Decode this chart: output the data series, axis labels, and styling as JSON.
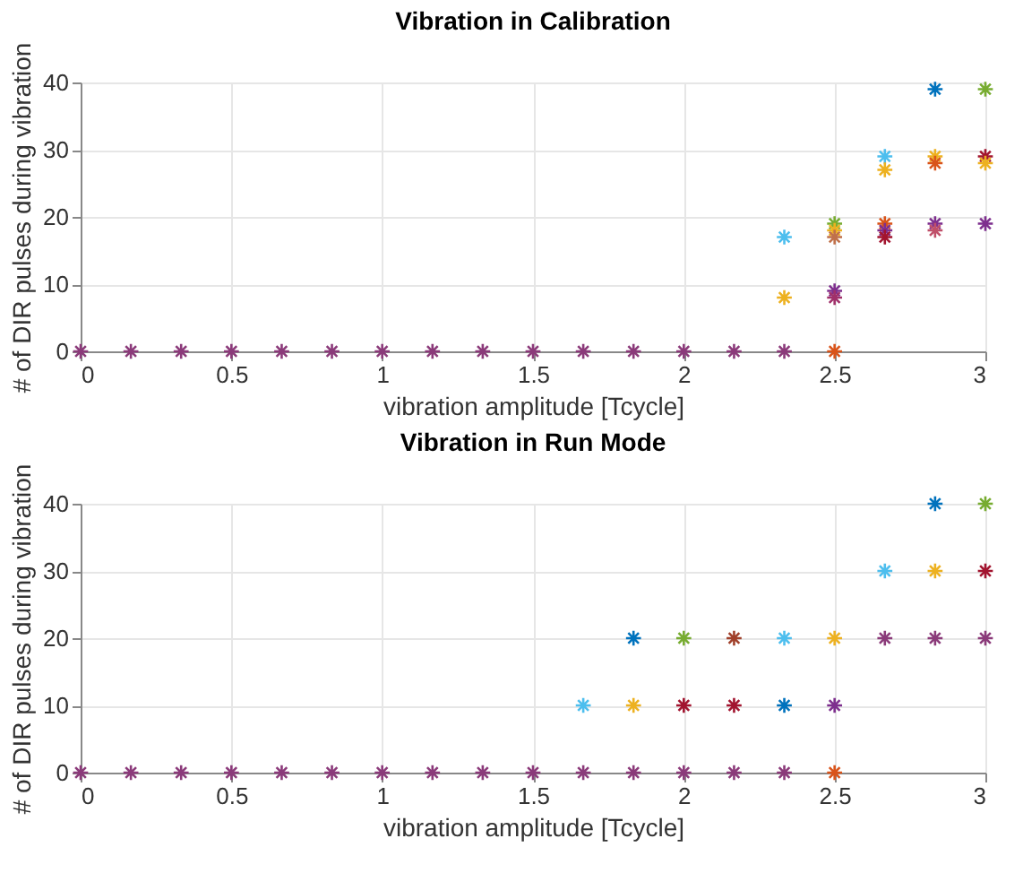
{
  "chart_data": [
    {
      "type": "scatter",
      "title": "Vibration in Calibration",
      "xlabel": "vibration amplitude [Tcycle]",
      "ylabel": "# of DIR pulses during vibration",
      "marker": "cross",
      "grid": true,
      "xlim": [
        0,
        3
      ],
      "ylim": [
        0,
        40
      ],
      "xticks": [
        0,
        0.5,
        1,
        1.5,
        2,
        2.5,
        3
      ],
      "yticks": [
        0,
        10,
        20,
        30,
        40
      ],
      "x": [
        0,
        0.1667,
        0.3333,
        0.5,
        0.6667,
        0.8333,
        1,
        1.1667,
        1.3333,
        1.5,
        1.6667,
        1.8333,
        2,
        2.1667,
        2.3333,
        2.5,
        2.3333,
        2.3333,
        2.5,
        2.5,
        2.5,
        2.5,
        2.5,
        2.6667,
        2.6667,
        2.6667,
        2.6667,
        2.6667,
        2.8333,
        2.8333,
        2.8333,
        2.8333,
        2.8333,
        3,
        3,
        3,
        3
      ],
      "values": [
        0,
        0,
        0,
        0,
        0,
        0,
        0,
        0,
        0,
        0,
        0,
        0,
        0,
        0,
        0,
        0,
        17,
        8,
        19,
        18,
        17,
        9,
        8,
        29,
        27,
        19,
        18,
        17,
        39,
        29,
        28,
        19,
        18,
        39,
        29,
        28,
        19
      ],
      "colors": [
        "#8b3a7a",
        "#8b3a7a",
        "#8b3a7a",
        "#8b3a7a",
        "#8b3a7a",
        "#8b3a7a",
        "#8b3a7a",
        "#8b3a7a",
        "#8b3a7a",
        "#8b3a7a",
        "#8b3a7a",
        "#8b3a7a",
        "#8b3a7a",
        "#8b3a7a",
        "#8b3a7a",
        "#d95319",
        "#4dbeee",
        "#edb120",
        "#77ac30",
        "#edb120",
        "#c0704a",
        "#7e2f8e",
        "#a0306a",
        "#4dbeee",
        "#edb120",
        "#d95319",
        "#7e2f8e",
        "#a2142f",
        "#0072bd",
        "#edb120",
        "#d95319",
        "#7e2f8e",
        "#c0506a",
        "#77ac30",
        "#a2142f",
        "#edb120",
        "#7e2f8e"
      ]
    },
    {
      "type": "scatter",
      "title": "Vibration in Run Mode",
      "xlabel": "vibration amplitude [Tcycle]",
      "ylabel": "# of DIR pulses during vibration",
      "marker": "cross",
      "grid": true,
      "xlim": [
        0,
        3
      ],
      "ylim": [
        0,
        40
      ],
      "xticks": [
        0,
        0.5,
        1,
        1.5,
        2,
        2.5,
        3
      ],
      "yticks": [
        0,
        10,
        20,
        30,
        40
      ],
      "x": [
        0,
        0.1667,
        0.3333,
        0.5,
        0.6667,
        0.8333,
        1,
        1.1667,
        1.3333,
        1.5,
        1.6667,
        1.8333,
        2,
        2.1667,
        2.3333,
        2.5,
        1.6667,
        1.8333,
        1.8333,
        2,
        2,
        2.1667,
        2.1667,
        2.3333,
        2.3333,
        2.5,
        2.5,
        2.6667,
        2.6667,
        2.8333,
        2.8333,
        2.8333,
        3,
        3,
        3
      ],
      "values": [
        0,
        0,
        0,
        0,
        0,
        0,
        0,
        0,
        0,
        0,
        0,
        0,
        0,
        0,
        0,
        0,
        10,
        10,
        20,
        10,
        20,
        10,
        20,
        10,
        20,
        10,
        20,
        20,
        30,
        20,
        30,
        40,
        20,
        30,
        40
      ],
      "colors": [
        "#8b3a7a",
        "#8b3a7a",
        "#8b3a7a",
        "#8b3a7a",
        "#8b3a7a",
        "#8b3a7a",
        "#8b3a7a",
        "#8b3a7a",
        "#8b3a7a",
        "#8b3a7a",
        "#8b3a7a",
        "#8b3a7a",
        "#8b3a7a",
        "#8b3a7a",
        "#8b3a7a",
        "#d95319",
        "#4dbeee",
        "#edb120",
        "#0072bd",
        "#a2142f",
        "#77ac30",
        "#a2142f",
        "#a0402a",
        "#0072bd",
        "#4dbeee",
        "#7e2f8e",
        "#edb120",
        "#8b3a7a",
        "#4dbeee",
        "#8b3a7a",
        "#edb120",
        "#0072bd",
        "#8b3a7a",
        "#a2142f",
        "#77ac30"
      ]
    }
  ]
}
